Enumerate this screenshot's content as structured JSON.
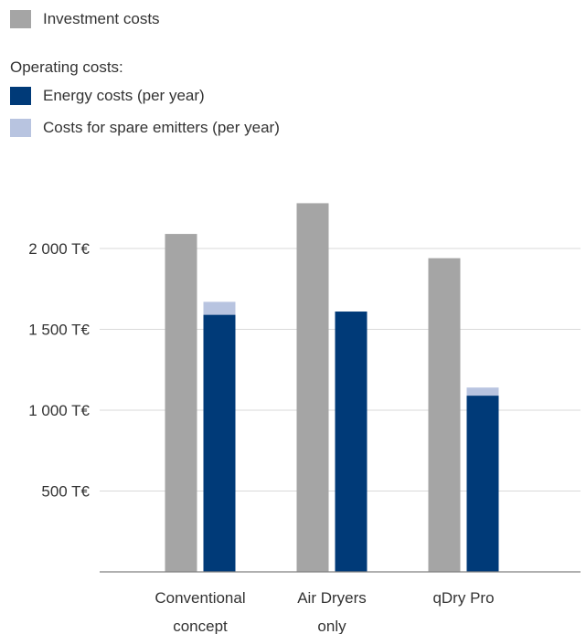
{
  "legend": {
    "investment": {
      "label": "Investment costs",
      "color": "#a5a5a5"
    },
    "operating_heading": "Operating costs:",
    "energy": {
      "label": "Energy costs (per year)",
      "color": "#003a78"
    },
    "spare": {
      "label": "Costs for spare emitters (per year)",
      "color": "#b8c4e0"
    }
  },
  "chart_data": {
    "type": "bar",
    "categories": [
      [
        "Conventional",
        "concept"
      ],
      [
        "Air Dryers",
        "only"
      ],
      [
        "qDry Pro"
      ]
    ],
    "series": [
      {
        "name": "Investment costs",
        "color": "#a5a5a5",
        "values": [
          2090,
          2280,
          1940
        ]
      },
      {
        "name": "Energy costs (per year)",
        "color": "#003a78",
        "values": [
          1590,
          1610,
          1090
        ]
      },
      {
        "name": "Costs for spare emitters (per year)",
        "color": "#b8c4e0",
        "values": [
          80,
          0,
          50
        ]
      }
    ],
    "stacked_series": [
      "Energy costs (per year)",
      "Costs for spare emitters (per year)"
    ],
    "unit": "T€",
    "ylim": [
      0,
      2500
    ],
    "yticks": [
      {
        "value": 500,
        "label": "500 T€"
      },
      {
        "value": 1000,
        "label": "1 000 T€"
      },
      {
        "value": 1500,
        "label": "1 500 T€"
      },
      {
        "value": 2000,
        "label": "2 000 T€"
      }
    ],
    "grid": true,
    "legend_position": "top"
  }
}
